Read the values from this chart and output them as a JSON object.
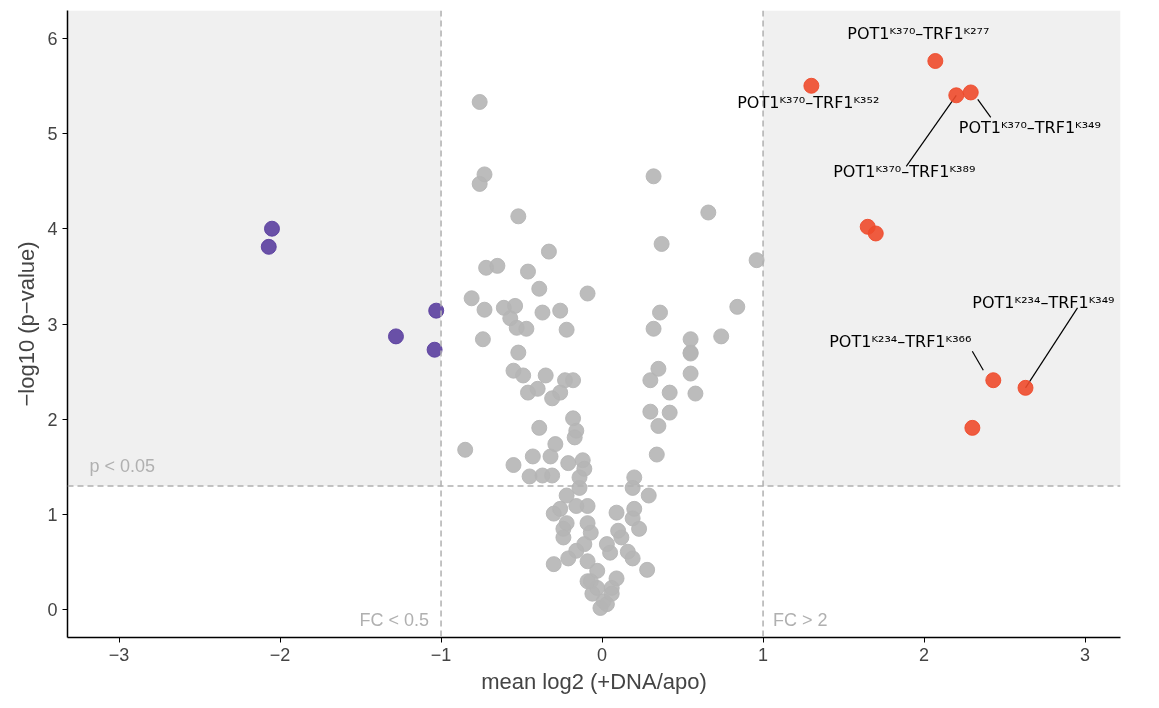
{
  "chart_data": {
    "type": "scatter",
    "xlabel": "mean log2 (+DNA/apo)",
    "ylabel": "−log10 (p−value)",
    "xlim": [
      -3.32,
      3.22
    ],
    "ylim": [
      -0.29,
      6.29
    ],
    "xticks": [
      -3,
      -2,
      -1,
      0,
      1,
      2,
      3
    ],
    "yticks": [
      0,
      1,
      2,
      3,
      4,
      5,
      6
    ],
    "grid": false,
    "marker": "circle",
    "series": [
      {
        "color": "#b5b5b5",
        "x": [
          -0.76,
          -0.73,
          -0.76,
          0.32,
          -0.52,
          0.66,
          -0.33,
          0.37,
          0.96,
          -0.72,
          -0.65,
          -0.46,
          -0.39,
          -0.09,
          -0.81,
          -0.73,
          -0.61,
          -0.54,
          -0.57,
          -0.37,
          -0.26,
          0.36,
          0.84,
          -0.53,
          -0.47,
          -0.22,
          0.32,
          0.55,
          0.74,
          -0.74,
          -0.52,
          0.55,
          -0.55,
          -0.49,
          -0.35,
          -0.23,
          -0.18,
          -0.46,
          -0.4,
          -0.31,
          -0.26,
          0.3,
          0.35,
          0.55,
          0.58,
          0.42,
          0.55,
          0.3,
          0.42,
          0.35,
          -0.18,
          -0.16,
          -0.17,
          -0.39,
          -0.85,
          -0.55,
          -0.43,
          -0.32,
          -0.29,
          -0.21,
          -0.12,
          -0.11,
          -0.45,
          -0.37,
          -0.31,
          -0.14,
          0.34,
          0.2,
          0.19,
          0.29,
          -0.22,
          -0.14,
          -0.09,
          -0.16,
          -0.3,
          -0.26,
          0.09,
          0.2,
          0.19,
          -0.22,
          -0.09,
          -0.24,
          -0.07,
          0.1,
          0.23,
          -0.24,
          0.12,
          0.03,
          -0.11,
          0.05,
          -0.16,
          0.16,
          0.19,
          -0.21,
          -0.3,
          0.28,
          -0.09,
          -0.03,
          -0.07,
          0.09,
          0.06,
          -0.06,
          0.01,
          -0.01,
          0.03,
          -0.03,
          -0.09,
          0.06
        ],
        "values": [
          5.33,
          4.57,
          4.47,
          4.55,
          4.13,
          4.17,
          3.76,
          3.84,
          3.67,
          3.59,
          3.61,
          3.55,
          3.37,
          3.32,
          3.27,
          3.15,
          3.17,
          3.19,
          3.06,
          3.12,
          3.14,
          3.12,
          3.18,
          2.96,
          2.95,
          2.94,
          2.95,
          2.84,
          2.87,
          2.84,
          2.7,
          2.7,
          2.51,
          2.46,
          2.46,
          2.41,
          2.41,
          2.28,
          2.32,
          2.22,
          2.28,
          2.41,
          2.53,
          2.48,
          2.27,
          2.28,
          2.69,
          2.08,
          2.07,
          1.93,
          2.01,
          1.88,
          1.81,
          1.91,
          1.68,
          1.52,
          1.61,
          1.61,
          1.74,
          1.54,
          1.57,
          1.48,
          1.4,
          1.41,
          1.41,
          1.39,
          1.63,
          1.39,
          1.28,
          1.2,
          1.2,
          1.28,
          1.09,
          1.09,
          1.01,
          1.06,
          1.02,
          1.06,
          0.96,
          0.91,
          0.91,
          0.85,
          0.81,
          0.83,
          0.85,
          0.76,
          0.76,
          0.69,
          0.69,
          0.6,
          0.62,
          0.61,
          0.54,
          0.54,
          0.48,
          0.42,
          0.51,
          0.41,
          0.3,
          0.33,
          0.23,
          0.17,
          0.09,
          0.02,
          0.06,
          0.23,
          0.3,
          0.17
        ]
      },
      {
        "color": "#5a3e9e",
        "x": [
          -2.05,
          -2.07,
          -1.28,
          -1.03,
          -1.04
        ],
        "values": [
          4.0,
          3.81,
          2.87,
          3.14,
          2.73
        ]
      },
      {
        "color": "#ee4a2b",
        "x": [
          1.3,
          2.07,
          2.2,
          2.29,
          1.65,
          1.7,
          2.43,
          2.63,
          2.3
        ],
        "values": [
          5.5,
          5.76,
          5.4,
          5.43,
          4.02,
          3.95,
          2.41,
          2.33,
          1.91
        ]
      }
    ],
    "ref_lines": [
      {
        "axis": "x",
        "value": -1,
        "label": "FC < 0.5",
        "color": "#b0b0b0",
        "line_style": "dashed"
      },
      {
        "axis": "x",
        "value": 1,
        "label": "FC > 2",
        "color": "#b0b0b0",
        "line_style": "dashed"
      },
      {
        "axis": "y",
        "value": 1.3,
        "label": "p < 0.05",
        "color": "#b0b0b0",
        "line_style": "dashed"
      }
    ],
    "bands": [
      {
        "axis": "x",
        "from": -3.32,
        "to": -1,
        "color": "#f0f0f0"
      },
      {
        "axis": "x",
        "from": 1,
        "to": 3.22,
        "color": "#f0f0f0"
      }
    ],
    "annotations": [
      {
        "text": "POT1ᴷ³⁷⁰–TRF1ᴷ³⁵²",
        "x": 1.3,
        "y": 5.5
      },
      {
        "text": "POT1ᴷ³⁷⁰–TRF1ᴷ²⁷⁷",
        "x": 2.07,
        "y": 5.76
      },
      {
        "text": "POT1ᴷ³⁷⁰–TRF1ᴷ³⁴⁹",
        "x": 2.29,
        "y": 5.43
      },
      {
        "text": "POT1ᴷ³⁷⁰–TRF1ᴷ³⁸⁹",
        "x": 2.2,
        "y": 5.4
      },
      {
        "text": "POT1ᴷ²³⁴–TRF1ᴷ³⁶⁶",
        "x": 2.43,
        "y": 2.41
      },
      {
        "text": "POT1ᴷ²³⁴–TRF1ᴷ³⁴⁹",
        "x": 2.63,
        "y": 2.33
      }
    ]
  }
}
